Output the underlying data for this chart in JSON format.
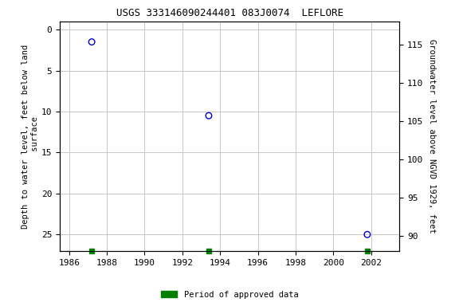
{
  "title": "USGS 333146090244401 083J0074  LEFLORE",
  "points": [
    {
      "year": 1987.2,
      "depth": 1.5
    },
    {
      "year": 1993.4,
      "depth": 10.5
    },
    {
      "year": 2001.8,
      "depth": 25.0
    }
  ],
  "green_bars": [
    1987.2,
    1993.4,
    2001.8
  ],
  "xlim": [
    1985.5,
    2003.5
  ],
  "ylim_left": [
    27,
    -1
  ],
  "ylim_right": [
    88,
    118
  ],
  "yticks_left": [
    0,
    5,
    10,
    15,
    20,
    25
  ],
  "yticks_right": [
    90,
    95,
    100,
    105,
    110,
    115
  ],
  "xticks": [
    1986,
    1988,
    1990,
    1992,
    1994,
    1996,
    1998,
    2000,
    2002
  ],
  "ylabel_left": "Depth to water level, feet below land\n surface",
  "ylabel_right": "Groundwater level above NGVD 1929, feet",
  "legend_label": "Period of approved data",
  "point_color": "#0000cc",
  "green_color": "#008000",
  "bg_color": "#ffffff",
  "grid_color": "#c8c8c8",
  "title_fontsize": 9,
  "label_fontsize": 7.5,
  "tick_fontsize": 8
}
